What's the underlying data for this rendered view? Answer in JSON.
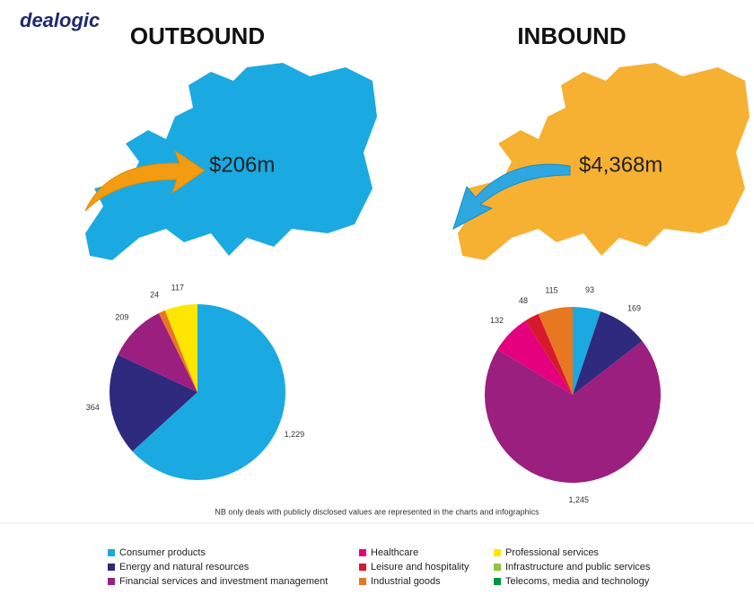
{
  "logo": "dealogic",
  "note": "NB only deals with publicly disclosed values are represented in the charts and infographics",
  "legend": {
    "categories": [
      "Consumer products",
      "Energy and natural resources",
      "Financial services and investment management",
      "Healthcare",
      "Leisure and hospitality",
      "Industrial goods",
      "Professional services",
      "Infrastructure and public services",
      "Telecoms, media and technology"
    ],
    "colors": [
      "#1ba9e1",
      "#2e2a7e",
      "#9b1f7f",
      "#e5007e",
      "#d7192e",
      "#e87722",
      "#ffe600",
      "#8dc63f",
      "#00963f"
    ]
  },
  "chart_data": [
    {
      "type": "pie",
      "title": "OUTBOUND",
      "annotation": "$206m",
      "values": [
        1229,
        364,
        209,
        null,
        null,
        24,
        117,
        null,
        null
      ],
      "value_labels": [
        "1,229",
        "364",
        "209",
        null,
        null,
        "24",
        "117",
        null,
        null
      ]
    },
    {
      "type": "pie",
      "title": "INBOUND",
      "annotation": "$4,368m",
      "values": [
        93,
        169,
        1245,
        132,
        48,
        115,
        null,
        null,
        null
      ],
      "value_labels": [
        "93",
        "169",
        "1,245",
        "132",
        "48",
        "115",
        null,
        null,
        null
      ]
    }
  ]
}
